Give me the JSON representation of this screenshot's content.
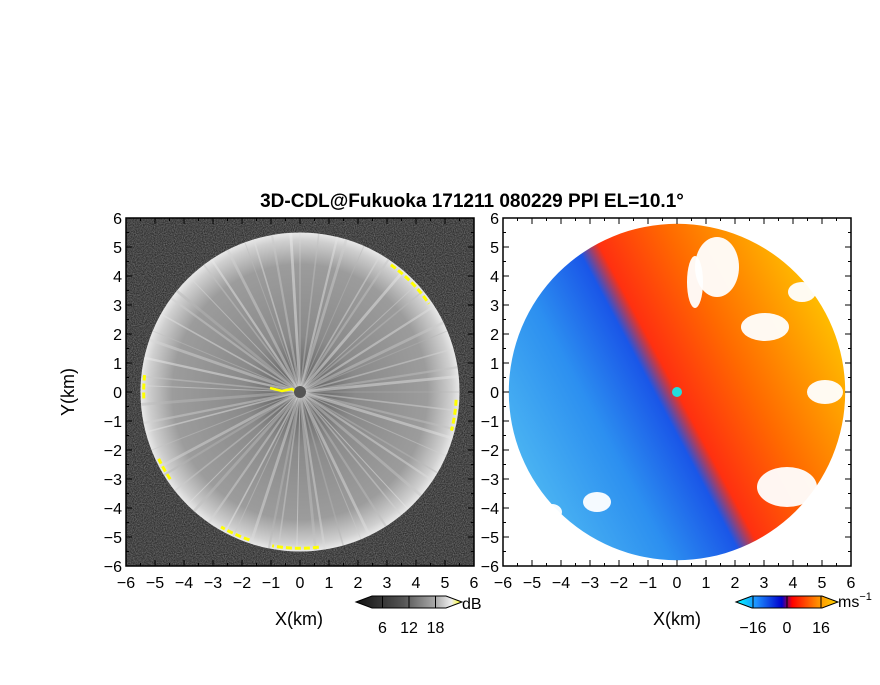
{
  "title": "3D-CDL@Fukuoka 171211 080229 PPI EL=10.1°",
  "chart_data": [
    {
      "type": "heatmap",
      "panel": "left",
      "variable": "reflectivity",
      "xlabel": "X(km)",
      "ylabel": "Y(km)",
      "xlim": [
        -6,
        6
      ],
      "ylim": [
        -6,
        6
      ],
      "xticks": [
        "−6",
        "−5",
        "−4",
        "−3",
        "−2",
        "−1",
        "0",
        "1",
        "2",
        "3",
        "4",
        "5",
        "6"
      ],
      "yticks": [
        "−6",
        "−5",
        "−4",
        "−3",
        "−2",
        "−1",
        "0",
        "1",
        "2",
        "3",
        "4",
        "5",
        "6"
      ],
      "scan_radius_km": 5.5,
      "colorbar": {
        "unit": "dB",
        "ticks": [
          "6",
          "12",
          "18"
        ],
        "tick_values": [
          6,
          12,
          18
        ],
        "range": [
          0,
          24
        ],
        "colors": [
          "#111111",
          "#555555",
          "#aaaaaa",
          "#eeeeee",
          "#ffff00"
        ]
      }
    },
    {
      "type": "heatmap",
      "panel": "right",
      "variable": "radial velocity",
      "xlabel": "X(km)",
      "xlim": [
        -6,
        6
      ],
      "ylim": [
        -6,
        6
      ],
      "xticks": [
        "−6",
        "−5",
        "−4",
        "−3",
        "−2",
        "−1",
        "0",
        "1",
        "2",
        "3",
        "4",
        "5",
        "6"
      ],
      "yticks": [
        "−6",
        "−5",
        "−4",
        "−3",
        "−2",
        "−1",
        "0",
        "1",
        "2",
        "3",
        "4",
        "5",
        "6"
      ],
      "scan_radius_km": 5.8,
      "colorbar": {
        "unit": "ms",
        "unit_exp": "−1",
        "ticks": [
          "−16",
          "0",
          "16"
        ],
        "tick_values": [
          -16,
          0,
          16
        ],
        "range": [
          -24,
          24
        ],
        "colors": [
          "#00ffff",
          "#1e90ff",
          "#0000cd",
          "#ff0000",
          "#ff8c00",
          "#ffd700"
        ]
      }
    }
  ]
}
